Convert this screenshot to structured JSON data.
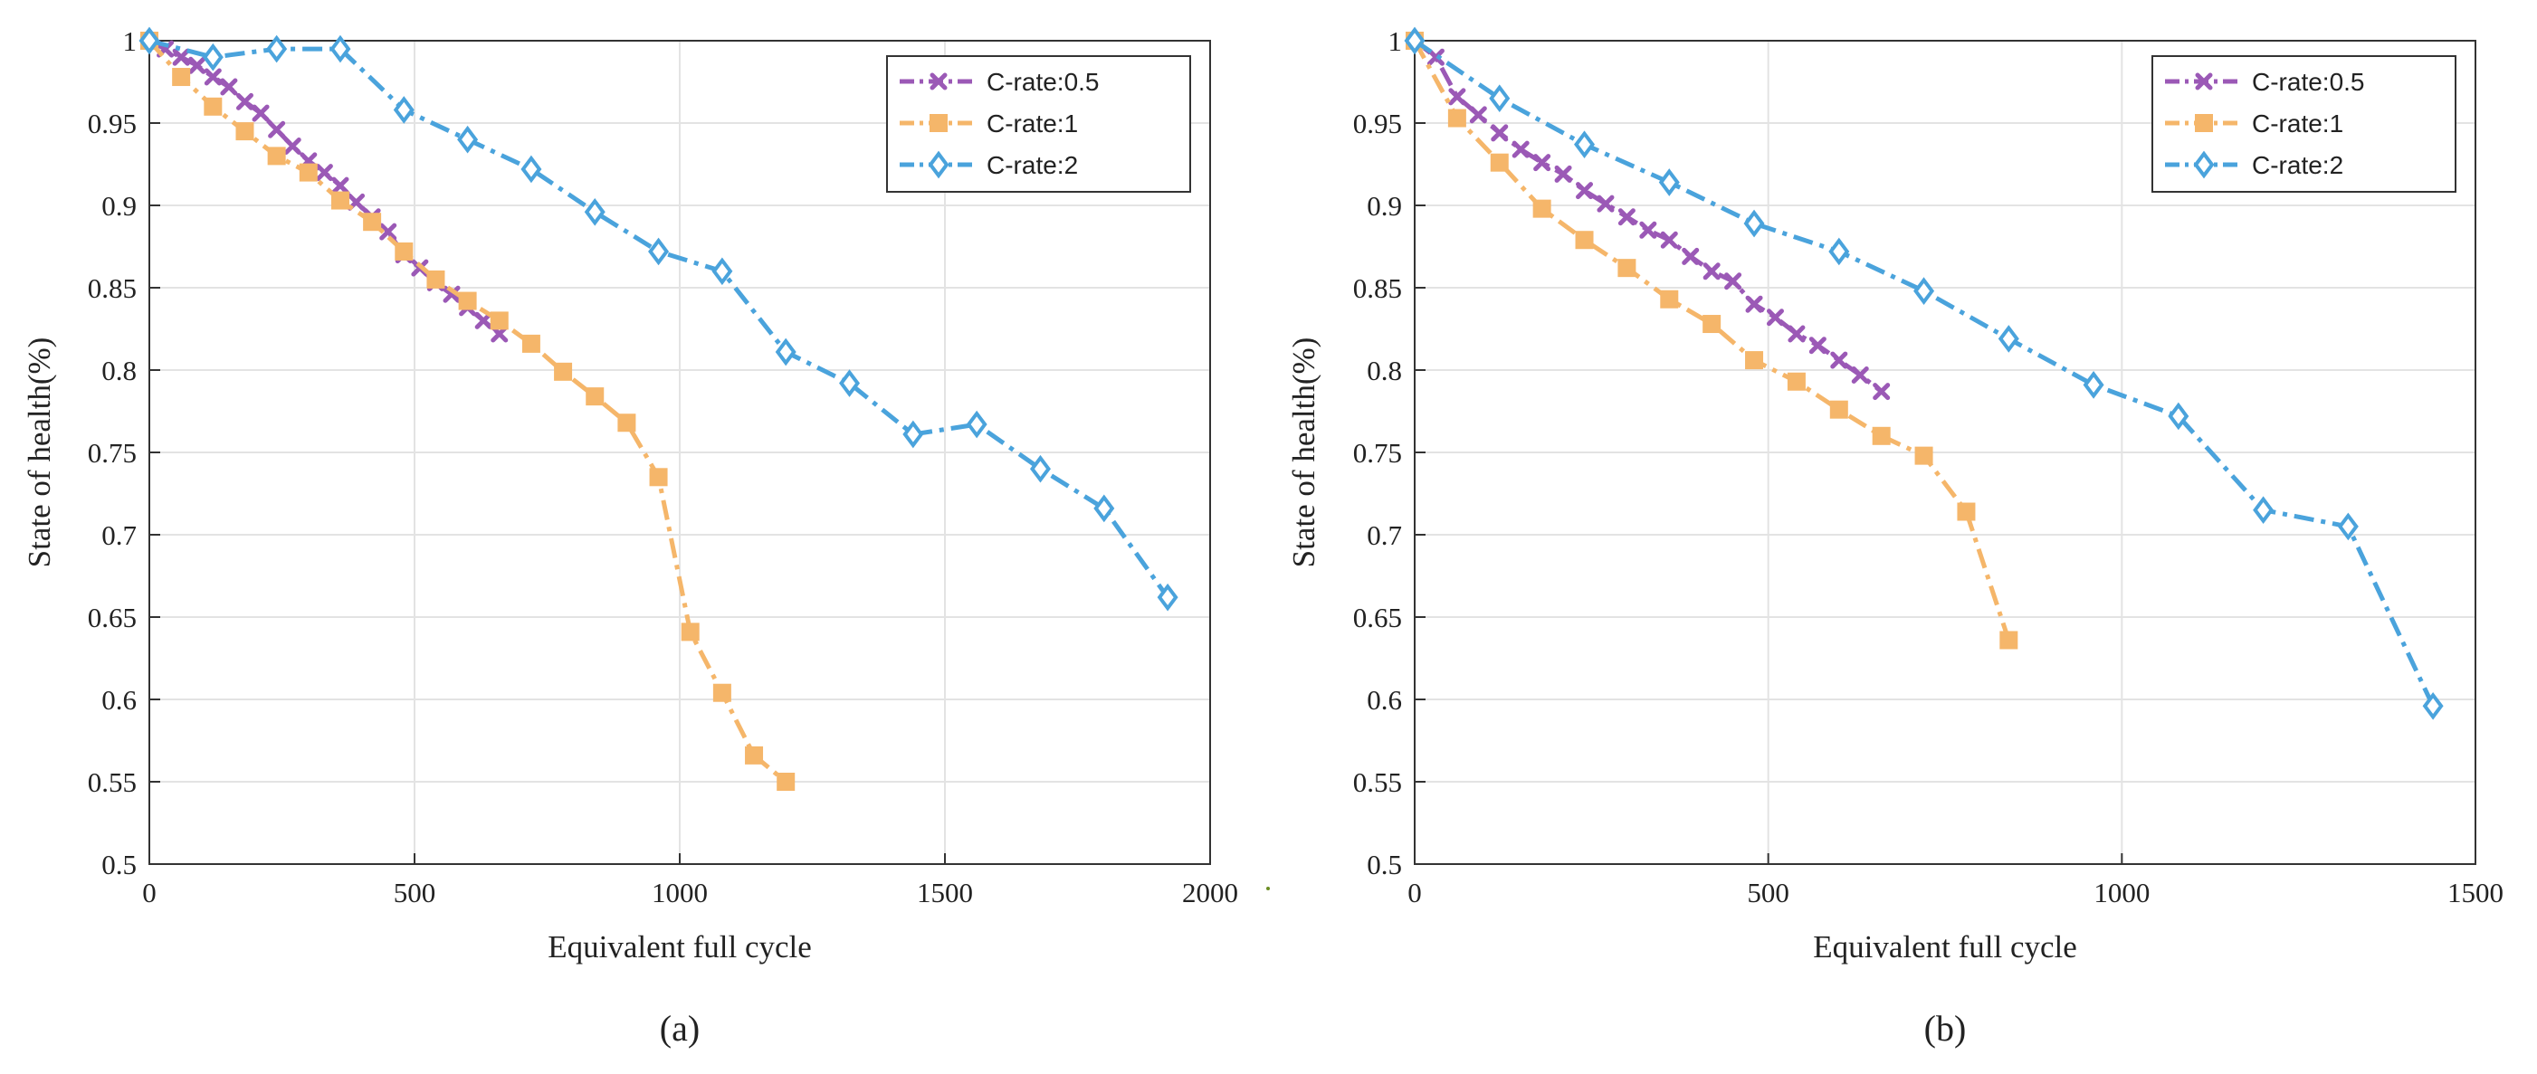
{
  "chart_data": [
    {
      "type": "line",
      "caption": "(a)",
      "xlabel": "Equivalent full cycle",
      "ylabel": "State of health(%)",
      "xlim": [
        0,
        2000
      ],
      "ylim": [
        0.5,
        1
      ],
      "xticks": [
        0,
        500,
        1000,
        1500,
        2000
      ],
      "yticks": [
        0.5,
        0.55,
        0.6,
        0.65,
        0.7,
        0.75,
        0.8,
        0.85,
        0.9,
        0.95,
        1
      ],
      "grid": true,
      "legend_position": "top-right",
      "series": [
        {
          "name": "C-rate:0.5",
          "color": "#9b59b6",
          "marker": "x",
          "x": [
            0,
            30,
            60,
            90,
            120,
            150,
            180,
            210,
            240,
            270,
            300,
            330,
            360,
            390,
            420,
            450,
            480,
            510,
            540,
            570,
            600,
            630,
            660
          ],
          "y": [
            1.0,
            0.995,
            0.99,
            0.985,
            0.978,
            0.972,
            0.963,
            0.956,
            0.946,
            0.936,
            0.927,
            0.92,
            0.912,
            0.902,
            0.893,
            0.884,
            0.87,
            0.862,
            0.853,
            0.846,
            0.838,
            0.83,
            0.822
          ]
        },
        {
          "name": "C-rate:1",
          "color": "#f5b66a",
          "marker": "square",
          "x": [
            0,
            60,
            120,
            180,
            240,
            300,
            360,
            420,
            480,
            540,
            600,
            660,
            720,
            780,
            840,
            900,
            960,
            1020,
            1080,
            1140,
            1200
          ],
          "y": [
            1.0,
            0.978,
            0.96,
            0.945,
            0.93,
            0.92,
            0.903,
            0.89,
            0.872,
            0.855,
            0.842,
            0.83,
            0.816,
            0.799,
            0.784,
            0.768,
            0.735,
            0.641,
            0.604,
            0.566,
            0.55
          ]
        },
        {
          "name": "C-rate:2",
          "color": "#4aa3dc",
          "marker": "diamond",
          "x": [
            0,
            120,
            240,
            360,
            480,
            600,
            720,
            840,
            960,
            1080,
            1200,
            1320,
            1440,
            1560,
            1680,
            1800,
            1920
          ],
          "y": [
            1.0,
            0.99,
            0.995,
            0.995,
            0.958,
            0.94,
            0.922,
            0.896,
            0.872,
            0.86,
            0.811,
            0.792,
            0.761,
            0.767,
            0.74,
            0.716,
            0.662
          ]
        }
      ]
    },
    {
      "type": "line",
      "caption": "(b)",
      "xlabel": "Equivalent full cycle",
      "ylabel": "State of health(%)",
      "xlim": [
        0,
        1500
      ],
      "ylim": [
        0.5,
        1
      ],
      "xticks": [
        0,
        500,
        1000,
        1500
      ],
      "yticks": [
        0.5,
        0.55,
        0.6,
        0.65,
        0.7,
        0.75,
        0.8,
        0.85,
        0.9,
        0.95,
        1
      ],
      "grid": true,
      "legend_position": "top-right",
      "series": [
        {
          "name": "C-rate:0.5",
          "color": "#9b59b6",
          "marker": "x",
          "x": [
            0,
            30,
            60,
            90,
            120,
            150,
            180,
            210,
            240,
            270,
            300,
            330,
            360,
            390,
            420,
            450,
            480,
            510,
            540,
            570,
            600,
            630,
            660
          ],
          "y": [
            1.0,
            0.99,
            0.966,
            0.955,
            0.944,
            0.934,
            0.926,
            0.919,
            0.909,
            0.901,
            0.893,
            0.885,
            0.879,
            0.869,
            0.86,
            0.854,
            0.84,
            0.832,
            0.822,
            0.815,
            0.806,
            0.797,
            0.787
          ]
        },
        {
          "name": "C-rate:1",
          "color": "#f5b66a",
          "marker": "square",
          "x": [
            0,
            60,
            120,
            180,
            240,
            300,
            360,
            420,
            480,
            540,
            600,
            660,
            720,
            780,
            840
          ],
          "y": [
            1.0,
            0.953,
            0.926,
            0.898,
            0.879,
            0.862,
            0.843,
            0.828,
            0.806,
            0.793,
            0.776,
            0.76,
            0.748,
            0.714,
            0.636
          ]
        },
        {
          "name": "C-rate:2",
          "color": "#4aa3dc",
          "marker": "diamond",
          "x": [
            0,
            120,
            240,
            360,
            480,
            600,
            720,
            840,
            960,
            1080,
            1200,
            1320,
            1440
          ],
          "y": [
            1.0,
            0.965,
            0.937,
            0.914,
            0.889,
            0.872,
            0.848,
            0.819,
            0.791,
            0.772,
            0.715,
            0.705,
            0.596
          ]
        }
      ]
    }
  ]
}
